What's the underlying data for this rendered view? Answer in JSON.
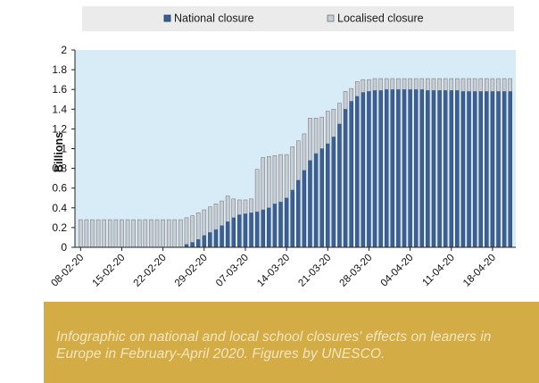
{
  "colors": {
    "national": "#3d5f93",
    "national_edge": "#1f3864",
    "localised": "#c9ccd1",
    "localised_edge": "#6e7178",
    "plot_bg": "#d7ecf7",
    "legend_bg": "#ebebeb",
    "caption_bg": "#d4ac45",
    "caption_text": "#f4e6c2"
  },
  "caption": {
    "text": "Infographic on national and local school closures' effects on leaners in Europe in February-April 2020. Figures by UNESCO."
  },
  "chart_data": {
    "type": "bar",
    "stacked": true,
    "ylabel": "Billions",
    "xlabel": "",
    "ylim": [
      0,
      2
    ],
    "yticks": [
      "0",
      "0.2",
      "0.4",
      "0.6",
      "0.8",
      "1",
      "1.2",
      "1.4",
      "1.6",
      "1.8",
      "2"
    ],
    "grid": false,
    "legend_position": "top",
    "date_range": [
      "08-02-20",
      "21-04-20"
    ],
    "categories": [
      "08-02-20",
      "09-02-20",
      "10-02-20",
      "11-02-20",
      "12-02-20",
      "13-02-20",
      "14-02-20",
      "15-02-20",
      "16-02-20",
      "17-02-20",
      "18-02-20",
      "19-02-20",
      "20-02-20",
      "21-02-20",
      "22-02-20",
      "23-02-20",
      "24-02-20",
      "25-02-20",
      "26-02-20",
      "27-02-20",
      "28-02-20",
      "29-02-20",
      "01-03-20",
      "02-03-20",
      "03-03-20",
      "04-03-20",
      "05-03-20",
      "06-03-20",
      "07-03-20",
      "08-03-20",
      "09-03-20",
      "10-03-20",
      "11-03-20",
      "12-03-20",
      "13-03-20",
      "14-03-20",
      "15-03-20",
      "16-03-20",
      "17-03-20",
      "18-03-20",
      "19-03-20",
      "20-03-20",
      "21-03-20",
      "22-03-20",
      "23-03-20",
      "24-03-20",
      "25-03-20",
      "26-03-20",
      "27-03-20",
      "28-03-20",
      "29-03-20",
      "30-03-20",
      "31-03-20",
      "01-04-20",
      "02-04-20",
      "03-04-20",
      "04-04-20",
      "05-04-20",
      "06-04-20",
      "07-04-20",
      "08-04-20",
      "09-04-20",
      "10-04-20",
      "11-04-20",
      "12-04-20",
      "13-04-20",
      "14-04-20",
      "15-04-20",
      "16-04-20",
      "17-04-20",
      "18-04-20",
      "19-04-20",
      "20-04-20",
      "21-04-20"
    ],
    "tick_labels": [
      "08-02-20",
      "15-02-20",
      "22-02-20",
      "29-02-20",
      "07-03-20",
      "14-03-20",
      "21-03-20",
      "28-03-20",
      "04-04-20",
      "11-04-20",
      "18-04-20"
    ],
    "series": [
      {
        "name": "National closure",
        "values": [
          0,
          0,
          0,
          0,
          0,
          0,
          0,
          0,
          0,
          0,
          0,
          0,
          0,
          0,
          0,
          0,
          0,
          0,
          0.03,
          0.05,
          0.08,
          0.12,
          0.15,
          0.18,
          0.22,
          0.26,
          0.3,
          0.33,
          0.34,
          0.35,
          0.36,
          0.38,
          0.4,
          0.44,
          0.46,
          0.5,
          0.58,
          0.68,
          0.78,
          0.88,
          0.95,
          1.0,
          1.05,
          1.12,
          1.25,
          1.4,
          1.48,
          1.53,
          1.57,
          1.58,
          1.59,
          1.59,
          1.6,
          1.6,
          1.6,
          1.6,
          1.6,
          1.6,
          1.6,
          1.59,
          1.59,
          1.59,
          1.59,
          1.59,
          1.59,
          1.58,
          1.58,
          1.58,
          1.58,
          1.58,
          1.58,
          1.58,
          1.58,
          1.58
        ]
      },
      {
        "name": "Localised closure",
        "values": [
          0.28,
          0.28,
          0.28,
          0.28,
          0.28,
          0.28,
          0.28,
          0.28,
          0.28,
          0.28,
          0.28,
          0.28,
          0.28,
          0.28,
          0.28,
          0.28,
          0.28,
          0.28,
          0.27,
          0.27,
          0.27,
          0.26,
          0.26,
          0.26,
          0.25,
          0.26,
          0.19,
          0.15,
          0.14,
          0.14,
          0.43,
          0.53,
          0.52,
          0.49,
          0.48,
          0.44,
          0.44,
          0.4,
          0.37,
          0.43,
          0.36,
          0.32,
          0.33,
          0.28,
          0.21,
          0.18,
          0.13,
          0.15,
          0.13,
          0.12,
          0.12,
          0.12,
          0.11,
          0.11,
          0.11,
          0.11,
          0.11,
          0.11,
          0.11,
          0.12,
          0.12,
          0.12,
          0.12,
          0.12,
          0.12,
          0.13,
          0.13,
          0.13,
          0.13,
          0.13,
          0.13,
          0.13,
          0.13,
          0.13
        ]
      }
    ]
  }
}
